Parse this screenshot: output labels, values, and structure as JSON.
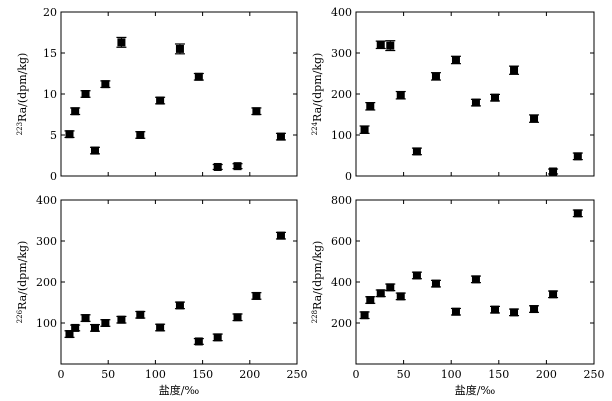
{
  "chart_data": [
    {
      "type": "scatter",
      "ylabel": "223Ra/(dpm/kg)",
      "ylabel_sup": "223",
      "ylabel_main": "Ra/(dpm/kg)",
      "xlabel": "",
      "xlim": [
        0,
        250
      ],
      "ylim": [
        0,
        20
      ],
      "xticks": [],
      "yticks": [
        0,
        5,
        10,
        15,
        20
      ],
      "points": [
        {
          "x": 9,
          "y": 5.1,
          "err": 0.4
        },
        {
          "x": 15,
          "y": 7.9,
          "err": 0.4
        },
        {
          "x": 26,
          "y": 10.0,
          "err": 0.4
        },
        {
          "x": 36,
          "y": 3.1,
          "err": 0.4
        },
        {
          "x": 47,
          "y": 11.2,
          "err": 0.4
        },
        {
          "x": 64,
          "y": 16.3,
          "err": 0.6
        },
        {
          "x": 84,
          "y": 5.0,
          "err": 0.4
        },
        {
          "x": 105,
          "y": 9.2,
          "err": 0.4
        },
        {
          "x": 126,
          "y": 15.5,
          "err": 0.6
        },
        {
          "x": 146,
          "y": 12.1,
          "err": 0.4
        },
        {
          "x": 166,
          "y": 1.1,
          "err": 0.3
        },
        {
          "x": 187,
          "y": 1.2,
          "err": 0.3
        },
        {
          "x": 207,
          "y": 7.9,
          "err": 0.4
        },
        {
          "x": 233,
          "y": 4.8,
          "err": 0.4
        }
      ]
    },
    {
      "type": "scatter",
      "ylabel": "224Ra/(dpm/kg)",
      "ylabel_sup": "224",
      "ylabel_main": "Ra/(dpm/kg)",
      "xlabel": "",
      "xlim": [
        0,
        250
      ],
      "ylim": [
        0,
        400
      ],
      "xticks": [],
      "yticks": [
        0,
        100,
        200,
        300,
        400
      ],
      "points": [
        {
          "x": 9,
          "y": 113,
          "err": 9
        },
        {
          "x": 15,
          "y": 170,
          "err": 9
        },
        {
          "x": 26,
          "y": 320,
          "err": 9
        },
        {
          "x": 36,
          "y": 318,
          "err": 12
        },
        {
          "x": 47,
          "y": 197,
          "err": 9
        },
        {
          "x": 64,
          "y": 60,
          "err": 8
        },
        {
          "x": 84,
          "y": 243,
          "err": 9
        },
        {
          "x": 105,
          "y": 283,
          "err": 9
        },
        {
          "x": 126,
          "y": 179,
          "err": 8
        },
        {
          "x": 146,
          "y": 191,
          "err": 8
        },
        {
          "x": 166,
          "y": 258,
          "err": 10
        },
        {
          "x": 187,
          "y": 140,
          "err": 9
        },
        {
          "x": 207,
          "y": 11,
          "err": 6
        },
        {
          "x": 233,
          "y": 48,
          "err": 8
        }
      ]
    },
    {
      "type": "scatter",
      "ylabel": "226Ra/(dpm/kg)",
      "ylabel_sup": "226",
      "ylabel_main": "Ra/(dpm/kg)",
      "xlabel": "盐度/‰",
      "xlim": [
        0,
        250
      ],
      "ylim": [
        0,
        400
      ],
      "xticks": [
        0,
        50,
        100,
        150,
        200,
        250
      ],
      "yticks": [
        100,
        200,
        300,
        400
      ],
      "points": [
        {
          "x": 9,
          "y": 73,
          "err": 8
        },
        {
          "x": 15,
          "y": 88,
          "err": 7
        },
        {
          "x": 26,
          "y": 112,
          "err": 8
        },
        {
          "x": 36,
          "y": 88,
          "err": 8
        },
        {
          "x": 47,
          "y": 100,
          "err": 8
        },
        {
          "x": 64,
          "y": 108,
          "err": 8
        },
        {
          "x": 84,
          "y": 120,
          "err": 8
        },
        {
          "x": 105,
          "y": 89,
          "err": 8
        },
        {
          "x": 126,
          "y": 143,
          "err": 8
        },
        {
          "x": 146,
          "y": 55,
          "err": 7
        },
        {
          "x": 166,
          "y": 65,
          "err": 8
        },
        {
          "x": 187,
          "y": 114,
          "err": 8
        },
        {
          "x": 207,
          "y": 166,
          "err": 8
        },
        {
          "x": 233,
          "y": 313,
          "err": 8
        }
      ]
    },
    {
      "type": "scatter",
      "ylabel": "228Ra/(dpm/kg)",
      "ylabel_sup": "228",
      "ylabel_main": "Ra/(dpm/kg)",
      "xlabel": "盐度/‰",
      "xlim": [
        0,
        250
      ],
      "ylim": [
        0,
        800
      ],
      "xticks": [
        0,
        50,
        100,
        150,
        200,
        250
      ],
      "yticks": [
        200,
        400,
        600,
        800
      ],
      "points": [
        {
          "x": 9,
          "y": 238,
          "err": 16
        },
        {
          "x": 15,
          "y": 312,
          "err": 16
        },
        {
          "x": 26,
          "y": 345,
          "err": 16
        },
        {
          "x": 36,
          "y": 374,
          "err": 16
        },
        {
          "x": 47,
          "y": 330,
          "err": 16
        },
        {
          "x": 64,
          "y": 432,
          "err": 16
        },
        {
          "x": 84,
          "y": 392,
          "err": 16
        },
        {
          "x": 105,
          "y": 255,
          "err": 16
        },
        {
          "x": 126,
          "y": 413,
          "err": 16
        },
        {
          "x": 146,
          "y": 265,
          "err": 16
        },
        {
          "x": 166,
          "y": 252,
          "err": 16
        },
        {
          "x": 187,
          "y": 268,
          "err": 16
        },
        {
          "x": 207,
          "y": 340,
          "err": 16
        },
        {
          "x": 233,
          "y": 735,
          "err": 16
        }
      ]
    }
  ]
}
